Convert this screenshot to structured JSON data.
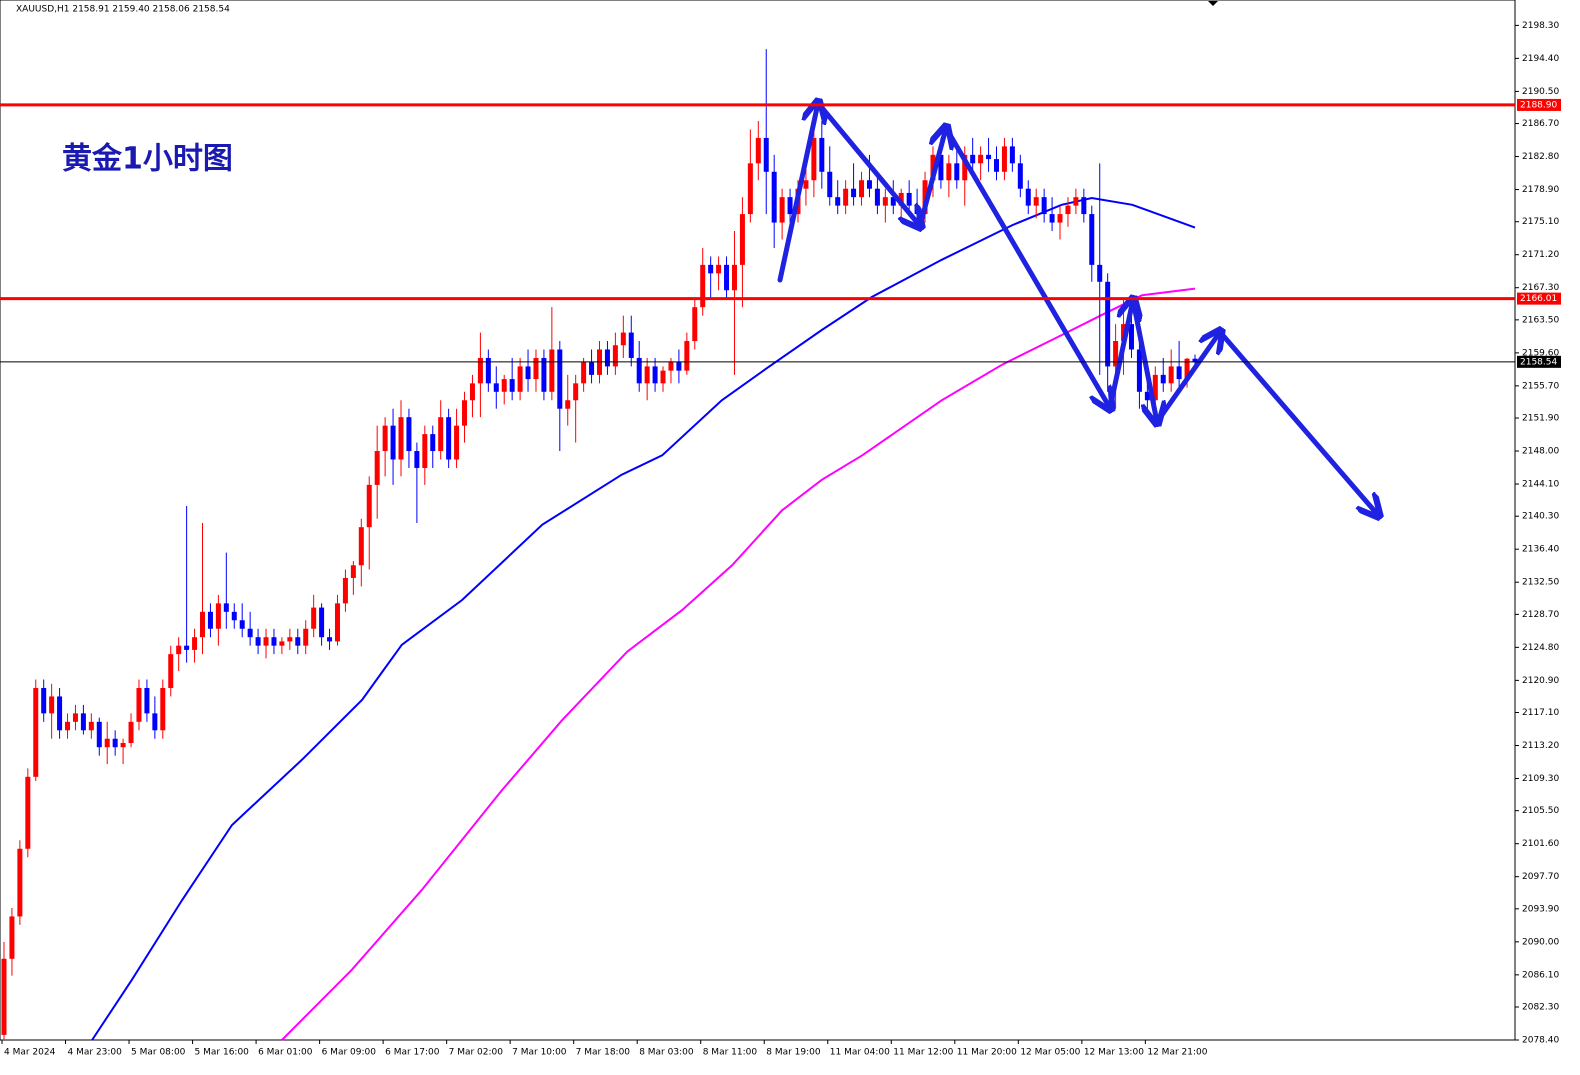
{
  "chart_data": {
    "type": "candlestick",
    "title": "XAUUSD,H1 2158.91 2159.40 2158.06 2158.54",
    "annotation": "黄金1小时图",
    "up_color": "#ff0000",
    "down_color": "#0000ff",
    "ylim": [
      2078.4,
      2201.3
    ],
    "yticks": [
      {
        "value": 2198.3,
        "label": "2198.30"
      },
      {
        "value": 2194.4,
        "label": "2194.40"
      },
      {
        "value": 2190.5,
        "label": "2190.50"
      },
      {
        "value": 2186.7,
        "label": "2186.70"
      },
      {
        "value": 2182.8,
        "label": "2182.80"
      },
      {
        "value": 2178.9,
        "label": "2178.90"
      },
      {
        "value": 2175.1,
        "label": "2175.10"
      },
      {
        "value": 2171.2,
        "label": "2171.20"
      },
      {
        "value": 2167.3,
        "label": "2167.30"
      },
      {
        "value": 2163.5,
        "label": "2163.50"
      },
      {
        "value": 2159.6,
        "label": "2159.60"
      },
      {
        "value": 2155.7,
        "label": "2155.70"
      },
      {
        "value": 2151.9,
        "label": "2151.90"
      },
      {
        "value": 2148,
        "label": "2148.00"
      },
      {
        "value": 2144.1,
        "label": "2144.10"
      },
      {
        "value": 2140.3,
        "label": "2140.30"
      },
      {
        "value": 2136.4,
        "label": "2136.40"
      },
      {
        "value": 2132.5,
        "label": "2132.50"
      },
      {
        "value": 2128.7,
        "label": "2128.70"
      },
      {
        "value": 2124.8,
        "label": "2124.80"
      },
      {
        "value": 2120.9,
        "label": "2120.90"
      },
      {
        "value": 2117.1,
        "label": "2117.10"
      },
      {
        "value": 2113.2,
        "label": "2113.20"
      },
      {
        "value": 2109.3,
        "label": "2109.30"
      },
      {
        "value": 2105.5,
        "label": "2105.50"
      },
      {
        "value": 2101.6,
        "label": "2101.60"
      },
      {
        "value": 2097.7,
        "label": "2097.70"
      },
      {
        "value": 2093.9,
        "label": "2093.90"
      },
      {
        "value": 2090,
        "label": "2090.00"
      },
      {
        "value": 2086.1,
        "label": "2086.10"
      },
      {
        "value": 2082.3,
        "label": "2082.30"
      },
      {
        "value": 2078.4,
        "label": "2078.40"
      }
    ],
    "hlines": [
      {
        "value": 2188.9,
        "label": "2188.90",
        "color": "#ff0000"
      },
      {
        "value": 2166.01,
        "label": "2166.01",
        "color": "#ff0000"
      },
      {
        "value": 2158.54,
        "label": "2158.54",
        "color": "#000000"
      }
    ],
    "categories": [
      "4 Mar 2024",
      null,
      null,
      null,
      null,
      null,
      null,
      null,
      "4 Mar 23:00",
      null,
      null,
      null,
      null,
      null,
      null,
      null,
      "5 Mar 08:00",
      null,
      null,
      null,
      null,
      null,
      null,
      null,
      "5 Mar 16:00",
      null,
      null,
      null,
      null,
      null,
      null,
      null,
      "6 Mar 01:00",
      null,
      null,
      null,
      null,
      null,
      null,
      null,
      "6 Mar 09:00",
      null,
      null,
      null,
      null,
      null,
      null,
      null,
      "6 Mar 17:00",
      null,
      null,
      null,
      null,
      null,
      null,
      null,
      "7 Mar 02:00",
      null,
      null,
      null,
      null,
      null,
      null,
      null,
      "7 Mar 10:00",
      null,
      null,
      null,
      null,
      null,
      null,
      null,
      "7 Mar 18:00",
      null,
      null,
      null,
      null,
      null,
      null,
      null,
      "8 Mar 03:00",
      null,
      null,
      null,
      null,
      null,
      null,
      null,
      "8 Mar 11:00",
      null,
      null,
      null,
      null,
      null,
      null,
      null,
      "8 Mar 19:00",
      null,
      null,
      null,
      null,
      null,
      null,
      null,
      "11 Mar 04:00",
      null,
      null,
      null,
      null,
      null,
      null,
      null,
      "11 Mar 12:00",
      null,
      null,
      null,
      null,
      null,
      null,
      null,
      "11 Mar 20:00",
      null,
      null,
      null,
      null,
      null,
      null,
      null,
      "12 Mar 05:00",
      null,
      null,
      null,
      null,
      null,
      null,
      null,
      "12 Mar 13:00",
      null,
      null,
      null,
      null,
      null,
      null,
      null,
      "12 Mar 21:00",
      null,
      null,
      null,
      null,
      null,
      null
    ],
    "ohlc": [
      [
        2079,
        2090,
        2078.5,
        2088
      ],
      [
        2088,
        2094,
        2086,
        2093
      ],
      [
        2093,
        2102,
        2092,
        2101
      ],
      [
        2101,
        2110.5,
        2100,
        2109.5
      ],
      [
        2109.5,
        2121,
        2109,
        2120
      ],
      [
        2120,
        2121,
        2116,
        2117
      ],
      [
        2117,
        2120.5,
        2114,
        2119
      ],
      [
        2119,
        2120,
        2114,
        2115
      ],
      [
        2115,
        2117,
        2114,
        2116
      ],
      [
        2116,
        2118,
        2115,
        2117
      ],
      [
        2117,
        2118,
        2114.5,
        2115
      ],
      [
        2115,
        2117,
        2114,
        2116
      ],
      [
        2116,
        2116.5,
        2112,
        2113
      ],
      [
        2113,
        2116,
        2111,
        2114
      ],
      [
        2114,
        2115,
        2112,
        2113
      ],
      [
        2113,
        2114,
        2111,
        2113.5
      ],
      [
        2113.5,
        2117,
        2113,
        2116
      ],
      [
        2116,
        2121,
        2115,
        2120
      ],
      [
        2120,
        2121,
        2116,
        2117
      ],
      [
        2117,
        2119,
        2114,
        2115
      ],
      [
        2115,
        2121,
        2114,
        2120
      ],
      [
        2120,
        2125,
        2119,
        2124
      ],
      [
        2124,
        2126,
        2122,
        2125
      ],
      [
        2125,
        2141.5,
        2123,
        2124.5
      ],
      [
        2124.5,
        2127,
        2123,
        2126
      ],
      [
        2126,
        2139.5,
        2124,
        2129
      ],
      [
        2129,
        2130,
        2126,
        2127
      ],
      [
        2127,
        2131,
        2125,
        2130
      ],
      [
        2130,
        2136,
        2127,
        2129
      ],
      [
        2129,
        2130,
        2127,
        2128
      ],
      [
        2128,
        2130,
        2126,
        2127
      ],
      [
        2127,
        2129,
        2125,
        2126
      ],
      [
        2126,
        2127,
        2124,
        2125
      ],
      [
        2125,
        2127,
        2123.5,
        2126
      ],
      [
        2126,
        2127,
        2124,
        2125
      ],
      [
        2125,
        2126,
        2124,
        2125.5
      ],
      [
        2125.5,
        2127,
        2124.5,
        2126
      ],
      [
        2126,
        2127,
        2124,
        2125
      ],
      [
        2125,
        2128,
        2124,
        2127
      ],
      [
        2127,
        2131,
        2126,
        2129.5
      ],
      [
        2129.5,
        2130,
        2125,
        2126
      ],
      [
        2126,
        2127,
        2124.5,
        2125.5
      ],
      [
        2125.5,
        2131,
        2125,
        2130
      ],
      [
        2130,
        2134,
        2129,
        2133
      ],
      [
        2133,
        2135,
        2131,
        2134.5
      ],
      [
        2134.5,
        2140,
        2132,
        2139
      ],
      [
        2139,
        2145,
        2134,
        2144
      ],
      [
        2144,
        2151,
        2140,
        2148
      ],
      [
        2148,
        2152,
        2145,
        2151
      ],
      [
        2151,
        2153,
        2144,
        2147
      ],
      [
        2147,
        2154,
        2145,
        2152
      ],
      [
        2152,
        2153,
        2146,
        2148
      ],
      [
        2148,
        2149,
        2139.5,
        2146
      ],
      [
        2146,
        2151,
        2144,
        2150
      ],
      [
        2150,
        2151,
        2146,
        2148
      ],
      [
        2148,
        2154,
        2147,
        2152
      ],
      [
        2152,
        2153,
        2146,
        2147
      ],
      [
        2147,
        2153,
        2146,
        2151
      ],
      [
        2151,
        2155,
        2149,
        2154
      ],
      [
        2154,
        2157,
        2152,
        2156
      ],
      [
        2156,
        2162,
        2152,
        2159
      ],
      [
        2159,
        2160,
        2155,
        2156
      ],
      [
        2156,
        2158,
        2153,
        2155
      ],
      [
        2155,
        2157,
        2153.5,
        2156.5
      ],
      [
        2156.5,
        2159,
        2154,
        2155
      ],
      [
        2155,
        2159,
        2154,
        2158
      ],
      [
        2158,
        2160,
        2155,
        2156.5
      ],
      [
        2156.5,
        2160,
        2155,
        2159
      ],
      [
        2159,
        2160,
        2154,
        2155
      ],
      [
        2155,
        2165,
        2154,
        2160
      ],
      [
        2160,
        2161,
        2148,
        2153
      ],
      [
        2153,
        2157,
        2151,
        2154
      ],
      [
        2154,
        2157,
        2149,
        2156
      ],
      [
        2156,
        2159,
        2155,
        2158.5
      ],
      [
        2158.5,
        2160,
        2156,
        2157
      ],
      [
        2157,
        2161,
        2156,
        2160
      ],
      [
        2160,
        2161,
        2157,
        2158
      ],
      [
        2158,
        2162,
        2157,
        2160.5
      ],
      [
        2160.5,
        2164,
        2159,
        2162
      ],
      [
        2162,
        2164,
        2158,
        2159
      ],
      [
        2159,
        2161,
        2155,
        2156
      ],
      [
        2156,
        2159,
        2154,
        2158
      ],
      [
        2158,
        2159,
        2155,
        2156
      ],
      [
        2156,
        2158,
        2155,
        2157.5
      ],
      [
        2157.5,
        2159,
        2156,
        2158.5
      ],
      [
        2158.5,
        2160,
        2156,
        2157.5
      ],
      [
        2157.5,
        2162,
        2157,
        2161
      ],
      [
        2161,
        2166,
        2160,
        2165
      ],
      [
        2165,
        2172,
        2164,
        2170
      ],
      [
        2170,
        2171,
        2166,
        2169
      ],
      [
        2169,
        2171,
        2167,
        2170
      ],
      [
        2170,
        2171,
        2166,
        2167
      ],
      [
        2167,
        2174,
        2157,
        2170
      ],
      [
        2170,
        2178,
        2165,
        2176
      ],
      [
        2176,
        2186,
        2175,
        2182
      ],
      [
        2182,
        2187,
        2180,
        2185
      ],
      [
        2185,
        2195.5,
        2176,
        2181
      ],
      [
        2181,
        2183,
        2172,
        2175
      ],
      [
        2175,
        2179,
        2173,
        2178
      ],
      [
        2178,
        2179,
        2175,
        2176
      ],
      [
        2176,
        2180,
        2175,
        2179
      ],
      [
        2179,
        2182,
        2177,
        2180
      ],
      [
        2180,
        2186,
        2178,
        2185
      ],
      [
        2185,
        2187,
        2179,
        2181
      ],
      [
        2181,
        2184,
        2177,
        2178
      ],
      [
        2178,
        2180,
        2176,
        2177
      ],
      [
        2177,
        2180,
        2176,
        2179
      ],
      [
        2179,
        2182,
        2177,
        2178
      ],
      [
        2178,
        2181,
        2177,
        2180
      ],
      [
        2180,
        2183,
        2178,
        2179
      ],
      [
        2179,
        2181,
        2176,
        2177
      ],
      [
        2177,
        2179,
        2175,
        2178
      ],
      [
        2178,
        2180,
        2176,
        2177
      ],
      [
        2177,
        2179,
        2175,
        2178.5
      ],
      [
        2178.5,
        2180,
        2176,
        2177
      ],
      [
        2177,
        2179,
        2174.5,
        2176
      ],
      [
        2176,
        2181,
        2175,
        2180
      ],
      [
        2180,
        2184,
        2178,
        2183
      ],
      [
        2183,
        2185,
        2179,
        2180
      ],
      [
        2180,
        2183,
        2178,
        2182
      ],
      [
        2182,
        2184,
        2179,
        2180
      ],
      [
        2180,
        2184,
        2177,
        2183
      ],
      [
        2183,
        2185,
        2181,
        2182
      ],
      [
        2182,
        2184,
        2180,
        2183
      ],
      [
        2183,
        2185,
        2181,
        2182.5
      ],
      [
        2182.5,
        2184,
        2180,
        2181
      ],
      [
        2181,
        2185,
        2180,
        2184
      ],
      [
        2184,
        2185,
        2181,
        2182
      ],
      [
        2182,
        2183,
        2178,
        2179
      ],
      [
        2179,
        2180,
        2176,
        2177
      ],
      [
        2177,
        2179,
        2175.5,
        2178
      ],
      [
        2178,
        2179,
        2175,
        2176
      ],
      [
        2176,
        2178,
        2174,
        2175
      ],
      [
        2175,
        2177,
        2173,
        2176
      ],
      [
        2176,
        2178,
        2174.5,
        2177
      ],
      [
        2177,
        2179,
        2176,
        2178
      ],
      [
        2178,
        2179,
        2175,
        2176
      ],
      [
        2176,
        2177,
        2168,
        2170
      ],
      [
        2170,
        2182,
        2157,
        2168
      ],
      [
        2168,
        2169,
        2155,
        2158
      ],
      [
        2158,
        2163,
        2153,
        2161
      ],
      [
        2161,
        2166,
        2157,
        2163
      ],
      [
        2163,
        2165,
        2159,
        2160
      ],
      [
        2160,
        2161,
        2153,
        2155
      ],
      [
        2155,
        2157,
        2152,
        2154
      ],
      [
        2154,
        2158,
        2153,
        2157
      ],
      [
        2157,
        2159,
        2155,
        2156
      ],
      [
        2156,
        2160,
        2155,
        2158
      ],
      [
        2158,
        2161,
        2155,
        2156.5
      ],
      [
        2156.5,
        2159,
        2155.5,
        2158.91
      ],
      [
        2158.91,
        2159.4,
        2158.06,
        2158.54
      ]
    ],
    "lines": [
      {
        "color": "#0000ff",
        "x": [
          11.1,
          16.1,
          22.4,
          28.7,
          37.5,
          45.1,
          50.1,
          57.7,
          67.8,
          77.8,
          82.9,
          90.4,
          96.1,
          103,
          109.3,
          118.1,
          127,
          133.2,
          137,
          142.1,
          150
        ],
        "values": [
          2078.4,
          2085.5,
          2094.9,
          2103.8,
          2111.5,
          2118.6,
          2125.1,
          2130.4,
          2139.3,
          2145.2,
          2147.5,
          2154,
          2157.8,
          2162.3,
          2166.2,
          2170.6,
          2174.7,
          2177.1,
          2177.9,
          2177.1,
          2174.4
        ]
      },
      {
        "color": "#ff00ff",
        "x": [
          35,
          43.8,
          52.6,
          62.7,
          70.3,
          78.5,
          85.4,
          91.7,
          98,
          103,
          108.1,
          118.1,
          125.7,
          133.2,
          138.3,
          143.3,
          150
        ],
        "values": [
          2078.4,
          2086.7,
          2096.1,
          2107.9,
          2116.2,
          2124.3,
          2129.2,
          2134.5,
          2141,
          2144.6,
          2147.5,
          2154,
          2158.2,
          2161.7,
          2164.1,
          2166.4,
          2167.2
        ]
      }
    ]
  }
}
